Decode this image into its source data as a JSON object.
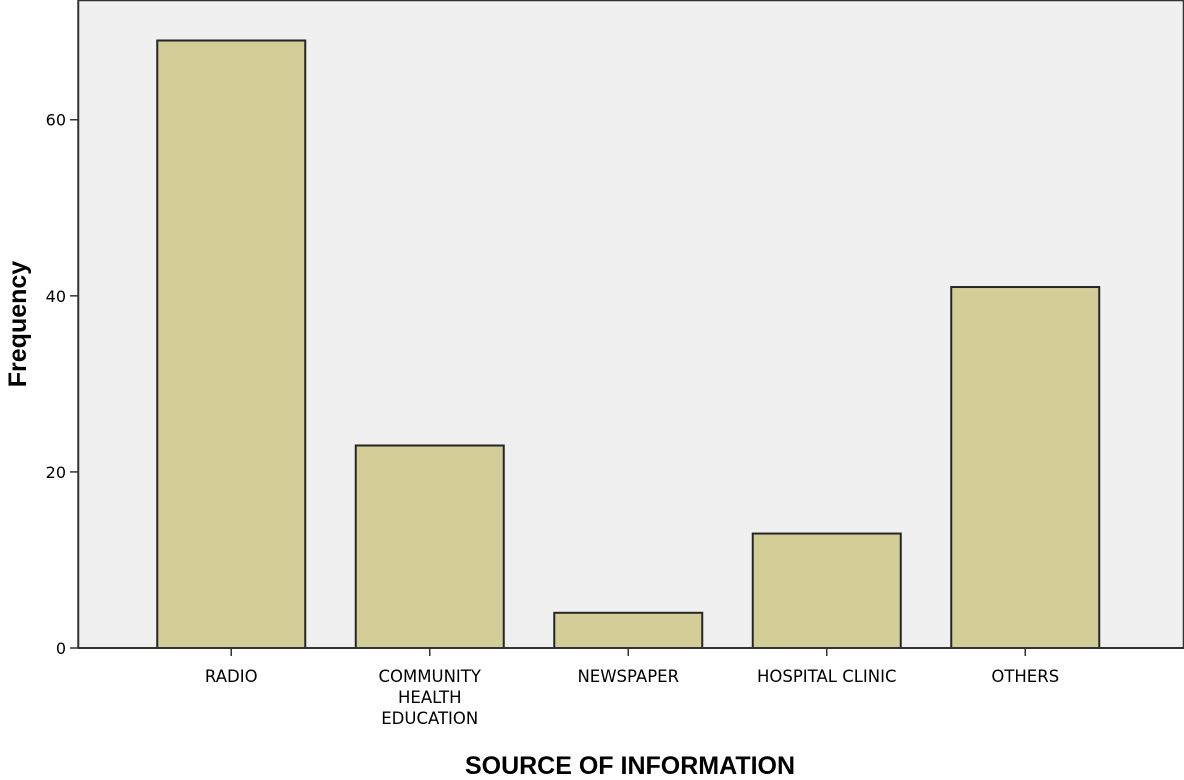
{
  "chart_data": {
    "type": "bar",
    "categories": [
      "RADIO",
      "COMMUNITY HEALTH EDUCATION",
      "NEWSPAPER",
      "HOSPITAL CLINIC",
      "OTHERS"
    ],
    "category_label_lines": [
      [
        "RADIO"
      ],
      [
        "COMMUNITY",
        "HEALTH",
        "EDUCATION"
      ],
      [
        "NEWSPAPER"
      ],
      [
        "HOSPITAL CLINIC"
      ],
      [
        "OTHERS"
      ]
    ],
    "values": [
      69,
      23,
      4,
      13,
      41
    ],
    "xlabel": "SOURCE OF INFORMATION",
    "ylabel": "Frequency",
    "yticks": [
      0,
      20,
      40,
      60
    ],
    "ylim": [
      0,
      73.6
    ],
    "grid": false,
    "colors": {
      "plot_background": "#f0f0f0",
      "bar_fill": "#d3ce97",
      "bar_stroke": "#262626",
      "axis": "#333333"
    }
  }
}
